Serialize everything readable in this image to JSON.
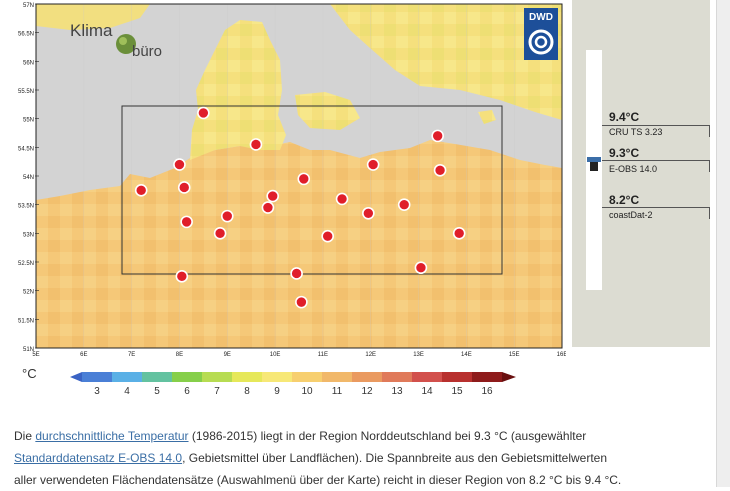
{
  "map": {
    "lat_labels": [
      "57N",
      "56.5N",
      "56N",
      "55.5N",
      "55N",
      "54.5N",
      "54N",
      "53.5N",
      "53N",
      "52.5N",
      "52N",
      "51.5N",
      "51N"
    ],
    "lon_labels": [
      "5E",
      "6E",
      "7E",
      "8E",
      "9E",
      "10E",
      "11E",
      "12E",
      "13E",
      "14E",
      "15E",
      "16E"
    ],
    "logo_text": "Klima büro",
    "dwd_text": "DWD",
    "stations_lonlat": [
      [
        8.5,
        55.1
      ],
      [
        8.0,
        54.2
      ],
      [
        9.6,
        54.55
      ],
      [
        10.6,
        53.95
      ],
      [
        12.05,
        54.2
      ],
      [
        13.4,
        54.7
      ],
      [
        13.45,
        54.1
      ],
      [
        7.2,
        53.75
      ],
      [
        8.1,
        53.8
      ],
      [
        9.0,
        53.3
      ],
      [
        9.95,
        53.65
      ],
      [
        9.85,
        53.45
      ],
      [
        11.4,
        53.6
      ],
      [
        11.95,
        53.35
      ],
      [
        12.7,
        53.5
      ],
      [
        13.85,
        53.0
      ],
      [
        8.15,
        53.2
      ],
      [
        8.85,
        53.0
      ],
      [
        11.1,
        52.95
      ],
      [
        8.05,
        52.25
      ],
      [
        10.45,
        52.3
      ],
      [
        13.05,
        52.4
      ],
      [
        10.55,
        51.8
      ]
    ]
  },
  "legend": {
    "unit": "°C",
    "ticks": [
      "3",
      "4",
      "5",
      "6",
      "7",
      "8",
      "9",
      "10",
      "11",
      "12",
      "13",
      "14",
      "15",
      "16"
    ],
    "colors": [
      "#4a7fd6",
      "#5ab0e6",
      "#63c2a0",
      "#86cf4a",
      "#b7dc52",
      "#e6e85a",
      "#f7e877",
      "#f7cf6f",
      "#f1b86a",
      "#ea9a60",
      "#e07a5a",
      "#d2504c",
      "#b8302e",
      "#8e1b1b"
    ]
  },
  "side": {
    "values": [
      {
        "value": "9.4°C",
        "source": "CRU TS 3.23"
      },
      {
        "value": "9.3°C",
        "source": "E-OBS 14.0"
      },
      {
        "value": "8.2°C",
        "source": "coastDat-2"
      }
    ]
  },
  "description": {
    "p1": "Die ",
    "link1": "durchschnittliche Temperatur",
    "p2": " (1986-2015) liegt in der Region Norddeutschland bei 9.3 °C (ausgewählter",
    "link2": "Standarddatensatz E-OBS 14.0",
    "p3": ", Gebietsmittel über Landflächen). Die Spannbreite aus den Gebietsmittelwerten",
    "p4": "aller verwendeten Flächendatensätze (Auswahlmenü über der Karte) reicht in dieser Region von 8.2 °C bis 9.4 °C."
  }
}
